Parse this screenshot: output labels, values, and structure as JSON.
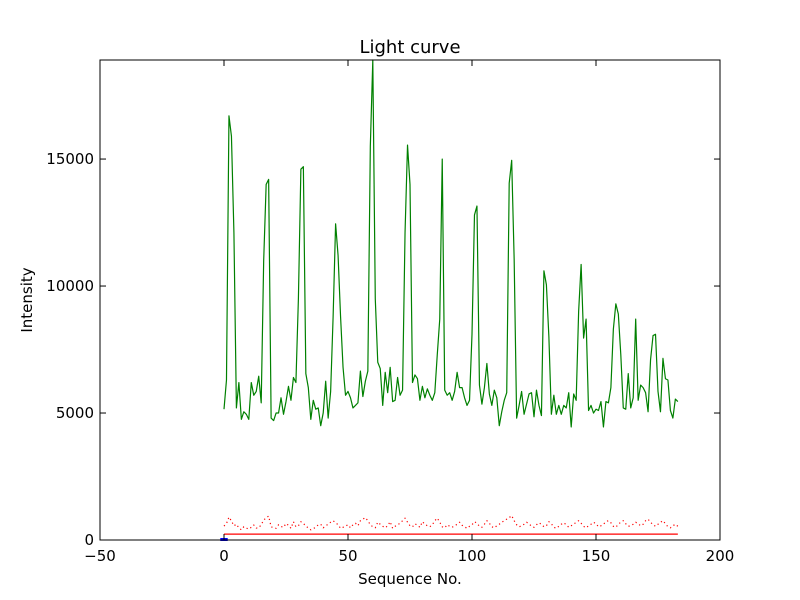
{
  "chart_data": {
    "type": "line",
    "title": "Light curve",
    "xlabel": "Sequence No.",
    "ylabel": "Intensity",
    "xlim": [
      -50,
      200
    ],
    "ylim": [
      0,
      18900
    ],
    "xticks": [
      -50,
      0,
      50,
      100,
      150,
      200
    ],
    "yticks": [
      0,
      5000,
      10000,
      15000
    ],
    "grid": false,
    "legend": "none",
    "colors": {
      "main": "#008000",
      "noise": "#ff0000",
      "baseline": "#ff0000",
      "marker": "#0000ff"
    },
    "series": [
      {
        "style": "solid",
        "color": "#008000",
        "x": [
          0,
          1,
          2,
          3,
          4,
          5,
          6,
          7,
          8,
          9,
          10,
          11,
          12,
          13,
          14,
          15,
          16,
          17,
          18,
          19,
          20,
          21,
          22,
          23,
          24,
          25,
          26,
          27,
          28,
          29,
          30,
          31,
          32,
          33,
          34,
          35,
          36,
          37,
          38,
          39,
          40,
          41,
          42,
          43,
          44,
          45,
          46,
          47,
          48,
          49,
          50,
          51,
          52,
          53,
          54,
          55,
          56,
          57,
          58,
          59,
          60,
          61,
          62,
          63,
          64,
          65,
          66,
          67,
          68,
          69,
          70,
          71,
          72,
          73,
          74,
          75,
          76,
          77,
          78,
          79,
          80,
          81,
          82,
          83,
          84,
          85,
          86,
          87,
          88,
          89,
          90,
          91,
          92,
          93,
          94,
          95,
          96,
          97,
          98,
          99,
          100,
          101,
          102,
          103,
          104,
          105,
          106,
          107,
          108,
          109,
          110,
          111,
          112,
          113,
          114,
          115,
          116,
          117,
          118,
          119,
          120,
          121,
          122,
          123,
          124,
          125,
          126,
          127,
          128,
          129,
          130,
          131,
          132,
          133,
          134,
          135,
          136,
          137,
          138,
          139,
          140,
          141,
          142,
          143,
          144,
          145,
          146,
          147,
          148,
          149,
          150,
          151,
          152,
          153,
          154,
          155,
          156,
          157,
          158,
          159,
          160,
          161,
          162,
          163,
          164,
          165,
          166,
          167,
          168,
          169,
          170,
          171,
          172,
          173,
          174,
          175,
          176,
          177,
          178,
          179,
          180,
          181,
          182,
          183
        ],
        "y": [
          5150,
          6300,
          16700,
          15900,
          12100,
          5200,
          6200,
          4750,
          5050,
          4950,
          4750,
          6200,
          5700,
          5850,
          6450,
          5400,
          11000,
          14000,
          14200,
          4800,
          4700,
          5000,
          5000,
          5600,
          4950,
          5450,
          6050,
          5500,
          6400,
          6200,
          9500,
          14600,
          14700,
          6550,
          6000,
          4750,
          5500,
          5150,
          5200,
          4500,
          5000,
          6250,
          4800,
          5850,
          8800,
          12450,
          11200,
          8800,
          6800,
          5700,
          5850,
          5600,
          5200,
          5300,
          5400,
          6650,
          5650,
          6250,
          6650,
          15500,
          18900,
          9500,
          7000,
          6750,
          5300,
          6600,
          5800,
          6800,
          5450,
          5500,
          6400,
          5700,
          5900,
          12100,
          15550,
          14000,
          6200,
          6500,
          6350,
          5500,
          6050,
          5600,
          5950,
          5700,
          5500,
          5800,
          7300,
          8700,
          15000,
          5900,
          5700,
          5800,
          5500,
          5850,
          6600,
          6000,
          6000,
          5600,
          5300,
          5500,
          8100,
          12800,
          13150,
          6100,
          5350,
          6000,
          6950,
          5750,
          5300,
          5900,
          5600,
          4500,
          5050,
          5500,
          5800,
          14050,
          14950,
          11050,
          4800,
          5300,
          5850,
          4950,
          5350,
          5750,
          5800,
          4850,
          5900,
          5300,
          4900,
          10600,
          10050,
          8000,
          4950,
          5700,
          4950,
          5300,
          4950,
          5300,
          5200,
          5800,
          4450,
          5750,
          5500,
          9000,
          10850,
          7950,
          8700,
          5100,
          5300,
          5000,
          5150,
          5100,
          5450,
          4450,
          5450,
          5400,
          6000,
          8300,
          9300,
          8900,
          7300,
          5200,
          5150,
          6550,
          5200,
          5600,
          8700,
          5500,
          6100,
          6000,
          5800,
          5050,
          7100,
          8050,
          8100,
          5850,
          5050,
          7150,
          6350,
          6300,
          5100,
          4800,
          5550,
          5450
        ]
      },
      {
        "style": "dotted",
        "color": "#ff0000",
        "x": [
          0,
          1,
          2,
          3,
          4,
          5,
          6,
          7,
          8,
          9,
          10,
          11,
          12,
          13,
          14,
          15,
          16,
          17,
          18,
          19,
          20,
          21,
          22,
          23,
          24,
          25,
          26,
          27,
          28,
          29,
          30,
          31,
          32,
          33,
          34,
          35,
          36,
          37,
          38,
          39,
          40,
          41,
          42,
          43,
          44,
          45,
          46,
          47,
          48,
          49,
          50,
          51,
          52,
          53,
          54,
          55,
          56,
          57,
          58,
          59,
          60,
          61,
          62,
          63,
          64,
          65,
          66,
          67,
          68,
          69,
          70,
          71,
          72,
          73,
          74,
          75,
          76,
          77,
          78,
          79,
          80,
          81,
          82,
          83,
          84,
          85,
          86,
          87,
          88,
          89,
          90,
          91,
          92,
          93,
          94,
          95,
          96,
          97,
          98,
          99,
          100,
          101,
          102,
          103,
          104,
          105,
          106,
          107,
          108,
          109,
          110,
          111,
          112,
          113,
          114,
          115,
          116,
          117,
          118,
          119,
          120,
          121,
          122,
          123,
          124,
          125,
          126,
          127,
          128,
          129,
          130,
          131,
          132,
          133,
          134,
          135,
          136,
          137,
          138,
          139,
          140,
          141,
          142,
          143,
          144,
          145,
          146,
          147,
          148,
          149,
          150,
          151,
          152,
          153,
          154,
          155,
          156,
          157,
          158,
          159,
          160,
          161,
          162,
          163,
          164,
          165,
          166,
          167,
          168,
          169,
          170,
          171,
          172,
          173,
          174,
          175,
          176,
          177,
          178,
          179,
          180,
          181,
          182,
          183
        ],
        "y": [
          550,
          650,
          900,
          750,
          560,
          620,
          480,
          400,
          520,
          470,
          430,
          500,
          590,
          470,
          480,
          600,
          780,
          880,
          940,
          520,
          480,
          460,
          600,
          530,
          500,
          650,
          580,
          460,
          720,
          520,
          560,
          720,
          660,
          540,
          480,
          400,
          450,
          500,
          600,
          620,
          480,
          560,
          620,
          700,
          760,
          680,
          600,
          460,
          500,
          550,
          600,
          480,
          600,
          660,
          560,
          760,
          820,
          880,
          760,
          600,
          520,
          480,
          700,
          620,
          540,
          480,
          560,
          720,
          460,
          540,
          600,
          660,
          760,
          860,
          700,
          560,
          520,
          640,
          580,
          500,
          720,
          620,
          560,
          520,
          600,
          760,
          860,
          700,
          520,
          480,
          600,
          540,
          500,
          560,
          620,
          700,
          580,
          520,
          460,
          540,
          600,
          720,
          660,
          540,
          500,
          620,
          760,
          660,
          520,
          480,
          560,
          620,
          700,
          760,
          820,
          880,
          960,
          760,
          600,
          520,
          560,
          620,
          700,
          640,
          540,
          500,
          600,
          680,
          620,
          520,
          560,
          720,
          640,
          500,
          460,
          540,
          620,
          680,
          600,
          500,
          560,
          620,
          700,
          760,
          660,
          540,
          480,
          560,
          620,
          700,
          640,
          520,
          560,
          620,
          720,
          760,
          680,
          540,
          500,
          620,
          700,
          760,
          640,
          540,
          560,
          620,
          700,
          640,
          560,
          620,
          760,
          820,
          700,
          600,
          540,
          620,
          700,
          760,
          640,
          520,
          480,
          560,
          620,
          540
        ]
      },
      {
        "style": "solid",
        "color": "#ff0000",
        "x": [
          0,
          183
        ],
        "y": [
          230,
          230
        ]
      },
      {
        "style": "solid",
        "color": "#0000ff",
        "x": [
          -1.5,
          1.5
        ],
        "y": [
          20,
          20
        ]
      }
    ]
  }
}
